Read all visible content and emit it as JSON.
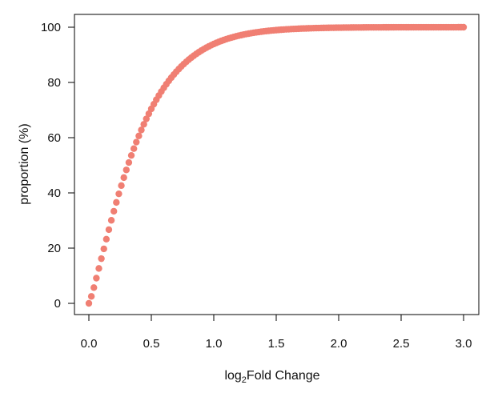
{
  "chart_data": {
    "type": "scatter",
    "xlabel_main": "log",
    "xlabel_sub": "2",
    "xlabel_rest": "Fold Change",
    "ylabel": "proportion (%)",
    "xlim": [
      0,
      3
    ],
    "ylim": [
      0,
      100
    ],
    "xticks": [
      "0.0",
      "0.5",
      "1.0",
      "1.5",
      "2.0",
      "2.5",
      "3.0"
    ],
    "yticks": [
      "0",
      "20",
      "40",
      "60",
      "80",
      "100"
    ],
    "grid": false,
    "legend": "none",
    "point_color": "#f07f73",
    "x_start": 0,
    "x_end": 3,
    "x_step": 0.02,
    "y_formula": "100 * (1 - exp(-2.8 * x^1.2))"
  }
}
